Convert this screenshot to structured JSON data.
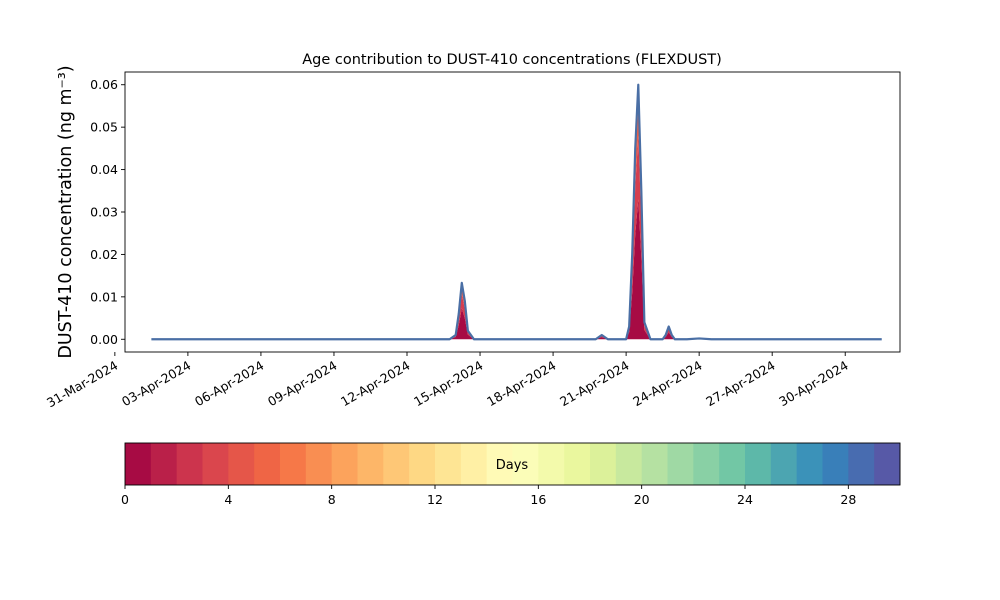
{
  "chart_data": {
    "type": "area",
    "title": "Age contribution to DUST-410 concentrations (FLEXDUST)",
    "ylabel": "DUST-410 concentration (ng m⁻³)",
    "xlabel": "",
    "ylim": [
      -0.003,
      0.063
    ],
    "xlim": [
      "2024-03-31T10:00",
      "2024-05-02T06:00"
    ],
    "yticks": [
      0.0,
      0.01,
      0.02,
      0.03,
      0.04,
      0.05,
      0.06
    ],
    "ytick_labels": [
      "0.00",
      "0.01",
      "0.02",
      "0.03",
      "0.04",
      "0.05",
      "0.06"
    ],
    "xticks": [
      "2024-03-31",
      "2024-04-03",
      "2024-04-06",
      "2024-04-09",
      "2024-04-12",
      "2024-04-15",
      "2024-04-18",
      "2024-04-21",
      "2024-04-24",
      "2024-04-27",
      "2024-04-30"
    ],
    "xtick_labels": [
      "31-Mar-2024",
      "03-Apr-2024",
      "06-Apr-2024",
      "09-Apr-2024",
      "12-Apr-2024",
      "15-Apr-2024",
      "18-Apr-2024",
      "21-Apr-2024",
      "24-Apr-2024",
      "27-Apr-2024",
      "30-Apr-2024"
    ],
    "total_line_color": "#4a6fa5",
    "series": [
      {
        "x": [
          "2024-04-01T12:00",
          "2024-04-14T00:00",
          "2024-04-14T06:00",
          "2024-04-14T12:00",
          "2024-04-14T18:00",
          "2024-04-19T18:00",
          "2024-04-20T00:00",
          "2024-04-20T06:00",
          "2024-04-20T12:00",
          "2024-04-21T00:00",
          "2024-04-21T06:00",
          "2024-04-21T12:00",
          "2024-04-21T18:00",
          "2024-04-22T00:00",
          "2024-04-22T12:00",
          "2024-04-22T18:00",
          "2024-04-23T00:00",
          "2024-04-23T06:00",
          "2024-04-23T12:00",
          "2024-04-23T18:00",
          "2024-04-24T00:00",
          "2024-05-01T12:00"
        ],
        "y": [
          0.0,
          0.0,
          0.0,
          0.0,
          0.0,
          0.0,
          0.0,
          0.0,
          0.0,
          0.0,
          0.0,
          0.002,
          0.0,
          0.0,
          0.0,
          0.0,
          0.0,
          0.0,
          0.0,
          0.0,
          0.0,
          0.0
        ]
      }
    ],
    "total": {
      "x": [
        "2024-04-01T12:00",
        "2024-04-13T18:00",
        "2024-04-14T00:00",
        "2024-04-14T03:00",
        "2024-04-14T06:00",
        "2024-04-14T09:00",
        "2024-04-14T12:00",
        "2024-04-14T18:00",
        "2024-04-19T12:00",
        "2024-04-19T18:00",
        "2024-04-20T00:00",
        "2024-04-20T06:00",
        "2024-04-21T00:00",
        "2024-04-21T03:00",
        "2024-04-21T06:00",
        "2024-04-21T09:00",
        "2024-04-21T12:00",
        "2024-04-21T15:00",
        "2024-04-21T18:00",
        "2024-04-22T00:00",
        "2024-04-22T12:00",
        "2024-04-22T15:00",
        "2024-04-22T18:00",
        "2024-04-22T21:00",
        "2024-04-23T00:00",
        "2024-04-23T12:00",
        "2024-04-24T00:00",
        "2024-04-24T12:00",
        "2024-04-25T00:00",
        "2024-05-01T12:00"
      ],
      "y": [
        0.0,
        0.0,
        0.001,
        0.006,
        0.0133,
        0.009,
        0.002,
        0.0,
        0.0,
        0.0,
        0.001,
        0.0,
        0.0,
        0.003,
        0.02,
        0.045,
        0.06,
        0.035,
        0.004,
        0.0,
        0.0,
        0.001,
        0.003,
        0.001,
        0.0,
        0.0,
        0.0002,
        0.0,
        0.0,
        0.0
      ]
    },
    "colorbar": {
      "label": "Days",
      "min": 0,
      "max": 30,
      "n_bins": 30,
      "ticks": [
        0,
        4,
        8,
        12,
        16,
        20,
        24,
        28
      ],
      "colormap": "Spectral"
    }
  }
}
